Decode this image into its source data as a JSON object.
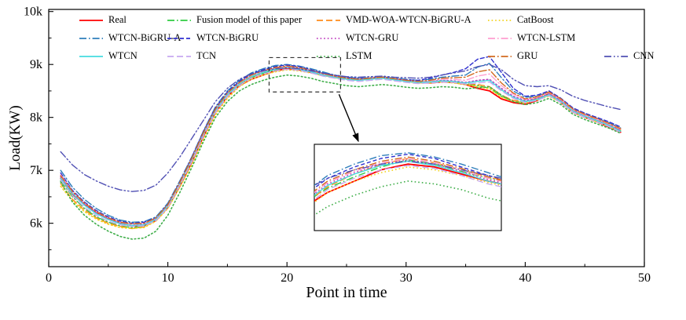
{
  "figure": {
    "x_ticks": {
      "values": [
        0,
        10,
        20,
        30,
        40,
        50
      ],
      "labels": [
        "0",
        "10",
        "20",
        "30",
        "40",
        "50"
      ]
    },
    "y_ticks": {
      "values": [
        6,
        7,
        8,
        9,
        10
      ],
      "labels": [
        "6k",
        "7k",
        "8k",
        "9k",
        "10k"
      ]
    }
  },
  "chart_data": {
    "type": "line",
    "title": "",
    "xlabel": "Point in time",
    "ylabel": "Load(KW)",
    "xlim": [
      0,
      50
    ],
    "ylim": [
      5.18,
      10.04
    ],
    "values_unit": "thousand KW (k)",
    "grid": false,
    "legend_position": "top-inside, 3 rows",
    "x": [
      1,
      2,
      3,
      4,
      5,
      6,
      7,
      8,
      9,
      10,
      11,
      12,
      13,
      14,
      15,
      16,
      17,
      18,
      19,
      20,
      21,
      22,
      23,
      24,
      25,
      26,
      27,
      28,
      29,
      30,
      31,
      32,
      33,
      34,
      35,
      36,
      37,
      38,
      39,
      40,
      41,
      42,
      43,
      44,
      45,
      46,
      47,
      48
    ],
    "series": [
      {
        "name": "Real",
        "color": "#ff0000",
        "dash": "solid",
        "width": 1.8,
        "values": [
          6.85,
          6.55,
          6.35,
          6.2,
          6.08,
          6.0,
          5.95,
          5.96,
          6.05,
          6.3,
          6.7,
          7.15,
          7.65,
          8.1,
          8.4,
          8.6,
          8.72,
          8.8,
          8.88,
          8.92,
          8.9,
          8.85,
          8.8,
          8.76,
          8.73,
          8.72,
          8.74,
          8.76,
          8.73,
          8.7,
          8.66,
          8.65,
          8.67,
          8.66,
          8.62,
          8.55,
          8.5,
          8.35,
          8.28,
          8.25,
          8.32,
          8.45,
          8.28,
          8.1,
          8.0,
          7.92,
          7.82,
          7.72
        ]
      },
      {
        "name": "Fusion model of this paper",
        "color": "#2ecc40",
        "dash": "dashdot",
        "width": 1.4,
        "values": [
          6.8,
          6.5,
          6.28,
          6.12,
          6.02,
          5.95,
          5.92,
          5.94,
          6.08,
          6.35,
          6.78,
          7.22,
          7.7,
          8.15,
          8.45,
          8.63,
          8.75,
          8.83,
          8.9,
          8.95,
          8.92,
          8.87,
          8.82,
          8.78,
          8.74,
          8.72,
          8.73,
          8.75,
          8.72,
          8.69,
          8.66,
          8.66,
          8.68,
          8.66,
          8.63,
          8.6,
          8.55,
          8.4,
          8.3,
          8.28,
          8.35,
          8.42,
          8.3,
          8.12,
          8.02,
          7.94,
          7.85,
          7.75
        ]
      },
      {
        "name": "VMD-WOA-WTCN-BiGRU-A",
        "color": "#ff8c1a",
        "dash": "dashed",
        "width": 1.4,
        "values": [
          6.75,
          6.45,
          6.25,
          6.1,
          6.0,
          5.94,
          5.9,
          5.93,
          6.06,
          6.32,
          6.74,
          7.18,
          7.68,
          8.12,
          8.42,
          8.62,
          8.76,
          8.85,
          8.92,
          8.96,
          8.93,
          8.88,
          8.83,
          8.79,
          8.75,
          8.73,
          8.74,
          8.76,
          8.73,
          8.7,
          8.67,
          8.67,
          8.69,
          8.67,
          8.64,
          8.62,
          8.58,
          8.42,
          8.32,
          8.3,
          8.36,
          8.44,
          8.32,
          8.14,
          8.04,
          7.96,
          7.86,
          7.77
        ]
      },
      {
        "name": "CatBoost",
        "color": "#f2d21f",
        "dash": "dotted",
        "width": 1.6,
        "values": [
          6.7,
          6.42,
          6.22,
          6.08,
          5.98,
          5.92,
          5.9,
          5.92,
          6.04,
          6.28,
          6.68,
          7.1,
          7.6,
          8.05,
          8.36,
          8.58,
          8.72,
          8.8,
          8.86,
          8.9,
          8.88,
          8.84,
          8.79,
          8.75,
          8.72,
          8.7,
          8.72,
          8.74,
          8.71,
          8.68,
          8.65,
          8.65,
          8.67,
          8.65,
          8.62,
          8.58,
          8.54,
          8.38,
          8.3,
          8.27,
          8.33,
          8.4,
          8.28,
          8.1,
          8.0,
          7.92,
          7.83,
          7.72
        ]
      },
      {
        "name": "WTCN-BiGRU-A",
        "color": "#2e7ebb",
        "dash": "dashdot",
        "width": 1.4,
        "values": [
          7.0,
          6.68,
          6.45,
          6.28,
          6.15,
          6.06,
          6.02,
          6.03,
          6.12,
          6.38,
          6.8,
          7.25,
          7.75,
          8.2,
          8.5,
          8.7,
          8.84,
          8.92,
          8.98,
          9.0,
          8.97,
          8.92,
          8.86,
          8.8,
          8.76,
          8.74,
          8.75,
          8.77,
          8.74,
          8.72,
          8.7,
          8.72,
          8.76,
          8.78,
          8.8,
          8.95,
          9.02,
          8.75,
          8.5,
          8.38,
          8.4,
          8.48,
          8.35,
          8.16,
          8.06,
          7.98,
          7.9,
          7.8
        ]
      },
      {
        "name": "WTCN-BiGRU",
        "color": "#2f2fd0",
        "dash": "densedash",
        "width": 1.4,
        "values": [
          6.95,
          6.62,
          6.4,
          6.24,
          6.12,
          6.04,
          6.0,
          6.02,
          6.1,
          6.36,
          6.78,
          7.24,
          7.74,
          8.18,
          8.48,
          8.68,
          8.82,
          8.9,
          8.96,
          8.99,
          8.96,
          8.9,
          8.84,
          8.79,
          8.75,
          8.73,
          8.74,
          8.76,
          8.73,
          8.71,
          8.7,
          8.74,
          8.8,
          8.85,
          8.92,
          9.1,
          9.15,
          8.85,
          8.55,
          8.4,
          8.42,
          8.5,
          8.36,
          8.18,
          8.08,
          8.0,
          7.92,
          7.82
        ]
      },
      {
        "name": "WTCN-GRU",
        "color": "#c040c0",
        "dash": "dotted",
        "width": 1.6,
        "values": [
          6.88,
          6.58,
          6.36,
          6.2,
          6.08,
          6.0,
          5.97,
          5.98,
          6.08,
          6.33,
          6.75,
          7.2,
          7.7,
          8.14,
          8.44,
          8.64,
          8.78,
          8.86,
          8.92,
          8.95,
          8.92,
          8.87,
          8.81,
          8.77,
          8.73,
          8.71,
          8.73,
          8.75,
          8.72,
          8.69,
          8.67,
          8.68,
          8.7,
          8.69,
          8.66,
          8.7,
          8.72,
          8.55,
          8.4,
          8.32,
          8.36,
          8.45,
          8.32,
          8.13,
          8.03,
          7.95,
          7.86,
          7.76
        ]
      },
      {
        "name": "WTCN-LSTM",
        "color": "#ff9fd0",
        "dash": "dashdot",
        "width": 1.4,
        "values": [
          6.92,
          6.6,
          6.38,
          6.22,
          6.1,
          6.02,
          5.98,
          6.0,
          6.09,
          6.34,
          6.76,
          7.21,
          7.71,
          8.15,
          8.45,
          8.65,
          8.79,
          8.87,
          8.93,
          8.96,
          8.93,
          8.88,
          8.82,
          8.78,
          8.74,
          8.72,
          8.74,
          8.76,
          8.73,
          8.7,
          8.68,
          8.69,
          8.72,
          8.72,
          8.7,
          8.78,
          8.82,
          8.6,
          8.44,
          8.34,
          8.38,
          8.47,
          8.34,
          8.15,
          8.05,
          7.97,
          7.88,
          7.78
        ]
      },
      {
        "name": "WTCN",
        "color": "#45dbe0",
        "dash": "solid",
        "width": 1.4,
        "values": [
          6.85,
          6.56,
          6.34,
          6.18,
          6.07,
          5.99,
          5.96,
          5.97,
          6.07,
          6.32,
          6.74,
          7.19,
          7.69,
          8.13,
          8.43,
          8.63,
          8.77,
          8.85,
          8.91,
          8.94,
          8.91,
          8.86,
          8.8,
          8.76,
          8.72,
          8.7,
          8.72,
          8.74,
          8.71,
          8.68,
          8.66,
          8.67,
          8.69,
          8.68,
          8.65,
          8.68,
          8.7,
          8.52,
          8.38,
          8.3,
          8.34,
          8.43,
          8.3,
          8.12,
          8.02,
          7.94,
          7.85,
          7.74
        ]
      },
      {
        "name": "TCN",
        "color": "#c8a8f0",
        "dash": "dashed",
        "width": 1.4,
        "values": [
          6.82,
          6.52,
          6.3,
          6.15,
          6.04,
          5.97,
          5.94,
          5.95,
          6.05,
          6.3,
          6.72,
          7.16,
          7.66,
          8.1,
          8.4,
          8.6,
          8.74,
          8.82,
          8.88,
          8.91,
          8.89,
          8.84,
          8.78,
          8.74,
          8.7,
          8.68,
          8.7,
          8.72,
          8.69,
          8.66,
          8.64,
          8.65,
          8.67,
          8.66,
          8.63,
          8.65,
          8.67,
          8.5,
          8.36,
          8.28,
          8.32,
          8.41,
          8.28,
          8.1,
          8.0,
          7.92,
          7.83,
          7.72
        ]
      },
      {
        "name": "LSTM",
        "color": "#3fae49",
        "dash": "dotted",
        "width": 1.6,
        "values": [
          6.78,
          6.4,
          6.15,
          5.98,
          5.85,
          5.75,
          5.7,
          5.72,
          5.85,
          6.15,
          6.58,
          7.05,
          7.55,
          8.0,
          8.3,
          8.5,
          8.62,
          8.7,
          8.76,
          8.8,
          8.78,
          8.74,
          8.68,
          8.64,
          8.6,
          8.58,
          8.6,
          8.62,
          8.6,
          8.57,
          8.55,
          8.56,
          8.58,
          8.57,
          8.54,
          8.56,
          8.58,
          8.42,
          8.3,
          8.24,
          8.28,
          8.36,
          8.24,
          8.06,
          7.96,
          7.88,
          7.8,
          7.7
        ]
      },
      {
        "name": "GRU",
        "color": "#d2691e",
        "dash": "dashdot",
        "width": 1.4,
        "values": [
          6.9,
          6.6,
          6.38,
          6.22,
          6.1,
          6.02,
          5.99,
          6.0,
          6.1,
          6.35,
          6.77,
          7.22,
          7.72,
          8.16,
          8.46,
          8.66,
          8.8,
          8.88,
          8.94,
          8.97,
          8.94,
          8.89,
          8.83,
          8.78,
          8.74,
          8.72,
          8.74,
          8.76,
          8.73,
          8.7,
          8.68,
          8.7,
          8.74,
          8.75,
          8.76,
          8.86,
          8.9,
          8.65,
          8.46,
          8.35,
          8.39,
          8.48,
          8.35,
          8.16,
          8.06,
          7.98,
          7.89,
          7.79
        ]
      },
      {
        "name": "CNN",
        "color": "#5050b4",
        "dash": "dashdotdot",
        "width": 1.4,
        "values": [
          7.35,
          7.1,
          6.92,
          6.8,
          6.7,
          6.63,
          6.6,
          6.62,
          6.72,
          6.95,
          7.25,
          7.6,
          7.95,
          8.3,
          8.55,
          8.72,
          8.82,
          8.88,
          8.92,
          8.94,
          8.92,
          8.88,
          8.84,
          8.8,
          8.77,
          8.76,
          8.77,
          8.78,
          8.76,
          8.75,
          8.74,
          8.76,
          8.8,
          8.84,
          8.88,
          8.96,
          9.0,
          8.9,
          8.72,
          8.6,
          8.58,
          8.6,
          8.52,
          8.4,
          8.32,
          8.26,
          8.2,
          8.15
        ]
      }
    ],
    "zoom_box": {
      "x": [
        18.5,
        24.5
      ],
      "y": [
        8.48,
        9.13
      ]
    },
    "inset": {
      "x_range": [
        16.5,
        23.5
      ],
      "y_range": [
        8.45,
        9.06
      ]
    }
  }
}
